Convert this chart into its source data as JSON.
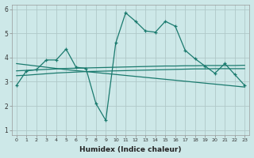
{
  "xlabel": "Humidex (Indice chaleur)",
  "ylabel": "",
  "background_color": "#cde8e8",
  "grid_color": "#b0c8c8",
  "line_color": "#1a7a6e",
  "xlim": [
    -0.5,
    23.5
  ],
  "ylim": [
    0.8,
    6.2
  ],
  "xtick_labels": [
    "0",
    "1",
    "2",
    "3",
    "4",
    "5",
    "6",
    "7",
    "8",
    "9",
    "10",
    "11",
    "12",
    "13",
    "14",
    "15",
    "16",
    "17",
    "18",
    "19",
    "20",
    "21",
    "22",
    "23"
  ],
  "ytick_labels": [
    "1",
    "2",
    "3",
    "4",
    "5",
    "6"
  ],
  "ytick_vals": [
    1,
    2,
    3,
    4,
    5,
    6
  ],
  "series1": [
    2.85,
    3.45,
    3.5,
    3.9,
    3.9,
    4.35,
    3.6,
    3.55,
    2.1,
    1.4,
    4.6,
    5.85,
    5.5,
    5.1,
    5.05,
    5.5,
    5.3,
    4.3,
    3.95,
    3.65,
    3.35,
    3.75,
    3.3,
    2.85
  ],
  "trend1": [
    3.25,
    3.27,
    3.3,
    3.33,
    3.36,
    3.38,
    3.4,
    3.42,
    3.43,
    3.44,
    3.45,
    3.46,
    3.47,
    3.48,
    3.49,
    3.5,
    3.51,
    3.52,
    3.53,
    3.53,
    3.54,
    3.54,
    3.54,
    3.54
  ],
  "trend2": [
    3.45,
    3.47,
    3.49,
    3.51,
    3.53,
    3.55,
    3.56,
    3.57,
    3.58,
    3.59,
    3.6,
    3.61,
    3.62,
    3.63,
    3.64,
    3.65,
    3.65,
    3.66,
    3.66,
    3.67,
    3.67,
    3.67,
    3.67,
    3.68
  ],
  "trend3": [
    3.75,
    3.7,
    3.65,
    3.6,
    3.55,
    3.5,
    3.46,
    3.42,
    3.38,
    3.34,
    3.3,
    3.26,
    3.22,
    3.18,
    3.14,
    3.1,
    3.06,
    3.02,
    2.98,
    2.94,
    2.9,
    2.86,
    2.82,
    2.78
  ]
}
